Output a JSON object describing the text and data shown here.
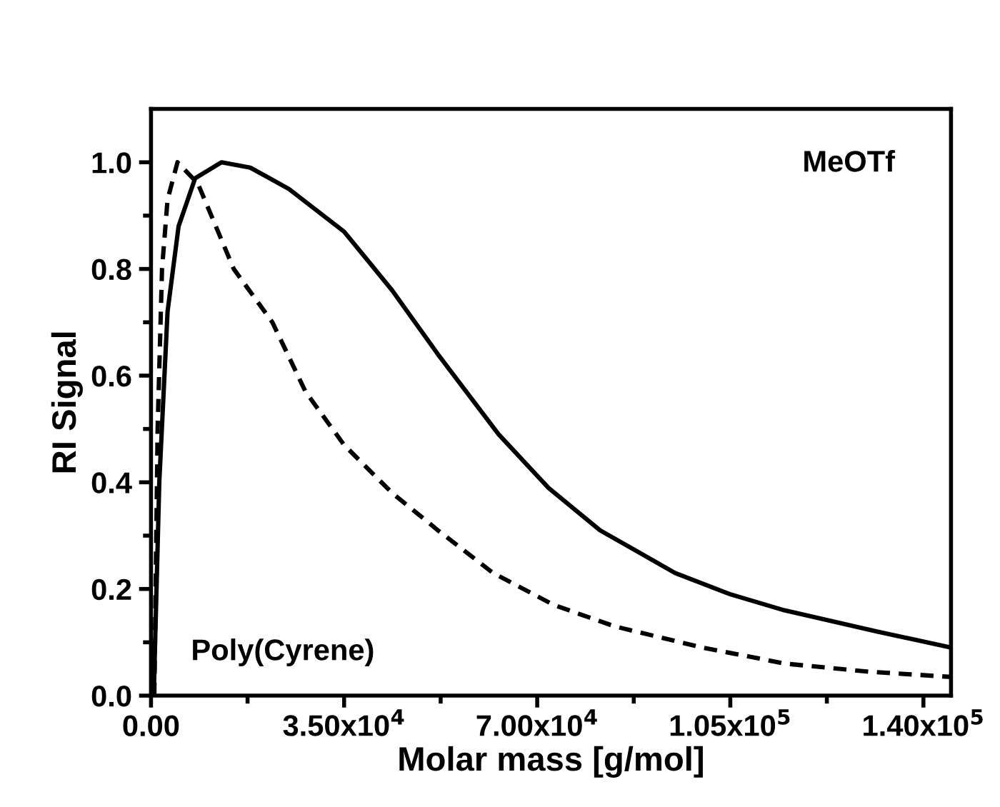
{
  "chart_data": {
    "type": "line",
    "xlabel": "Molar mass [g/mol]",
    "ylabel": "RI Signal",
    "annotations": [
      "MeOTf",
      "Poly(Cyrene)"
    ],
    "xlim": [
      0,
      145000
    ],
    "ylim": [
      0,
      1.1
    ],
    "xticks": [
      {
        "value": 0,
        "label": "0.00"
      },
      {
        "value": 17500,
        "label": null
      },
      {
        "value": 35000,
        "label": "3.50x10$^{4}$"
      },
      {
        "value": 52500,
        "label": null
      },
      {
        "value": 70000,
        "label": "7.00x10$^{4}$"
      },
      {
        "value": 87500,
        "label": null
      },
      {
        "value": 105000,
        "label": "1.05x10$^{5}$"
      },
      {
        "value": 122500,
        "label": null
      },
      {
        "value": 140000,
        "label": "1.40x10$^{5}$"
      }
    ],
    "yticks": [
      {
        "value": 0,
        "label": "0.0"
      },
      {
        "value": 0.1,
        "label": null
      },
      {
        "value": 0.2,
        "label": "0.2"
      },
      {
        "value": 0.3,
        "label": null
      },
      {
        "value": 0.4,
        "label": "0.4"
      },
      {
        "value": 0.5,
        "label": null
      },
      {
        "value": 0.6,
        "label": "0.6"
      },
      {
        "value": 0.7,
        "label": null
      },
      {
        "value": 0.8,
        "label": "0.8"
      },
      {
        "value": 0.9,
        "label": null
      },
      {
        "value": 1.0,
        "label": "1.0"
      }
    ],
    "grid": false,
    "legend": false,
    "series": [
      {
        "color": "#000000",
        "line_style": "solid",
        "x": [
          500,
          1500,
          3000,
          5000,
          8000,
          12800,
          18000,
          25000,
          35000,
          43700,
          52000,
          63000,
          72000,
          81400,
          95000,
          105000,
          114800,
          131700,
          145000
        ],
        "values": [
          0,
          0.4,
          0.72,
          0.88,
          0.97,
          1.0,
          0.99,
          0.95,
          0.87,
          0.76,
          0.64,
          0.49,
          0.39,
          0.31,
          0.23,
          0.19,
          0.16,
          0.12,
          0.09
        ]
      },
      {
        "color": "#000000",
        "line_style": "dashed",
        "x": [
          600,
          1200,
          2000,
          3000,
          4800,
          8500,
          15000,
          22000,
          28000,
          35000,
          43700,
          52000,
          62000,
          73000,
          84000,
          100000,
          115000,
          130000,
          145000
        ],
        "values": [
          0,
          0.5,
          0.8,
          0.93,
          1.0,
          0.96,
          0.8,
          0.7,
          0.57,
          0.47,
          0.38,
          0.31,
          0.23,
          0.17,
          0.13,
          0.09,
          0.06,
          0.045,
          0.035
        ]
      }
    ]
  }
}
